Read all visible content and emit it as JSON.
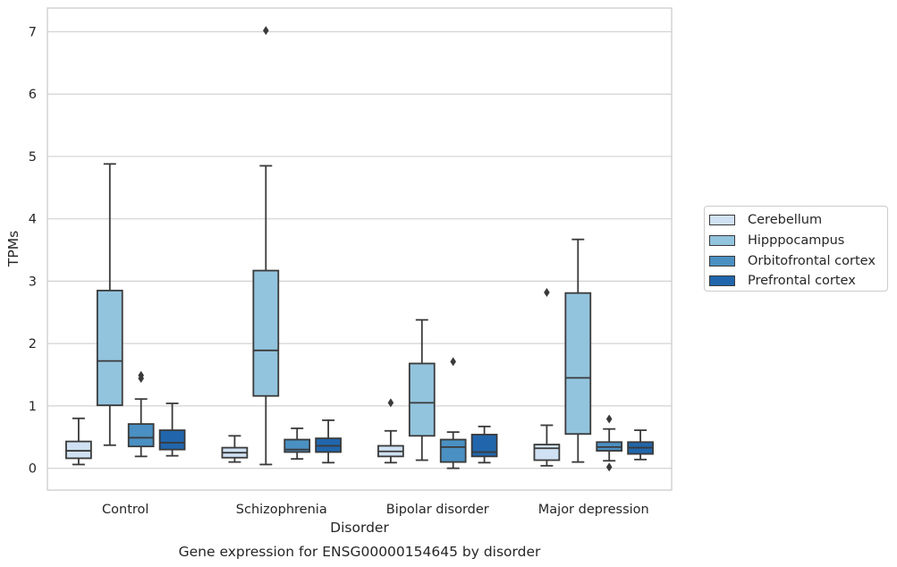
{
  "chart_data": {
    "type": "box",
    "xlabel": "Disorder",
    "ylabel": "TPMs",
    "caption": "Gene expression for ENSG00000154645 by disorder",
    "categories": [
      "Control",
      "Schizophrenia",
      "Bipolar disorder",
      "Major depression"
    ],
    "ylim": [
      -0.35,
      7.38
    ],
    "yticks": [
      "0",
      "1",
      "2",
      "3",
      "4",
      "5",
      "6",
      "7"
    ],
    "grid": true,
    "legend_position": "right",
    "series": [
      {
        "name": "Cerebellum",
        "color": "#cfe1f2",
        "boxes": [
          {
            "whislo": 0.06,
            "q1": 0.16,
            "med": 0.28,
            "q3": 0.43,
            "whishi": 0.8,
            "fliers": []
          },
          {
            "whislo": 0.1,
            "q1": 0.17,
            "med": 0.25,
            "q3": 0.33,
            "whishi": 0.52,
            "fliers": []
          },
          {
            "whislo": 0.09,
            "q1": 0.19,
            "med": 0.27,
            "q3": 0.36,
            "whishi": 0.6,
            "fliers": [
              1.05
            ]
          },
          {
            "whislo": 0.04,
            "q1": 0.13,
            "med": 0.32,
            "q3": 0.38,
            "whishi": 0.69,
            "fliers": [
              2.82
            ]
          }
        ]
      },
      {
        "name": "Hipppocampus",
        "color": "#93c4de",
        "boxes": [
          {
            "whislo": 0.37,
            "q1": 1.01,
            "med": 1.72,
            "q3": 2.85,
            "whishi": 4.88,
            "fliers": []
          },
          {
            "whislo": 0.06,
            "q1": 1.16,
            "med": 1.89,
            "q3": 3.17,
            "whishi": 4.85,
            "fliers": [
              7.02
            ]
          },
          {
            "whislo": 0.13,
            "q1": 0.52,
            "med": 1.05,
            "q3": 1.68,
            "whishi": 2.38,
            "fliers": []
          },
          {
            "whislo": 0.1,
            "q1": 0.55,
            "med": 1.45,
            "q3": 2.81,
            "whishi": 3.67,
            "fliers": []
          }
        ]
      },
      {
        "name": "Orbitofrontal cortex",
        "color": "#4a90c2",
        "boxes": [
          {
            "whislo": 0.19,
            "q1": 0.35,
            "med": 0.49,
            "q3": 0.71,
            "whishi": 1.11,
            "fliers": [
              1.44,
              1.49
            ]
          },
          {
            "whislo": 0.15,
            "q1": 0.26,
            "med": 0.3,
            "q3": 0.46,
            "whishi": 0.64,
            "fliers": []
          },
          {
            "whislo": 0.0,
            "q1": 0.1,
            "med": 0.34,
            "q3": 0.46,
            "whishi": 0.58,
            "fliers": [
              1.71
            ]
          },
          {
            "whislo": 0.12,
            "q1": 0.28,
            "med": 0.34,
            "q3": 0.42,
            "whishi": 0.63,
            "fliers": [
              0.79,
              0.02
            ]
          }
        ]
      },
      {
        "name": "Prefrontal cortex",
        "color": "#2166ac",
        "boxes": [
          {
            "whislo": 0.2,
            "q1": 0.3,
            "med": 0.41,
            "q3": 0.61,
            "whishi": 1.04,
            "fliers": []
          },
          {
            "whislo": 0.09,
            "q1": 0.26,
            "med": 0.36,
            "q3": 0.48,
            "whishi": 0.77,
            "fliers": []
          },
          {
            "whislo": 0.09,
            "q1": 0.19,
            "med": 0.26,
            "q3": 0.54,
            "whishi": 0.67,
            "fliers": []
          },
          {
            "whislo": 0.14,
            "q1": 0.23,
            "med": 0.33,
            "q3": 0.42,
            "whishi": 0.61,
            "fliers": []
          }
        ]
      }
    ]
  }
}
